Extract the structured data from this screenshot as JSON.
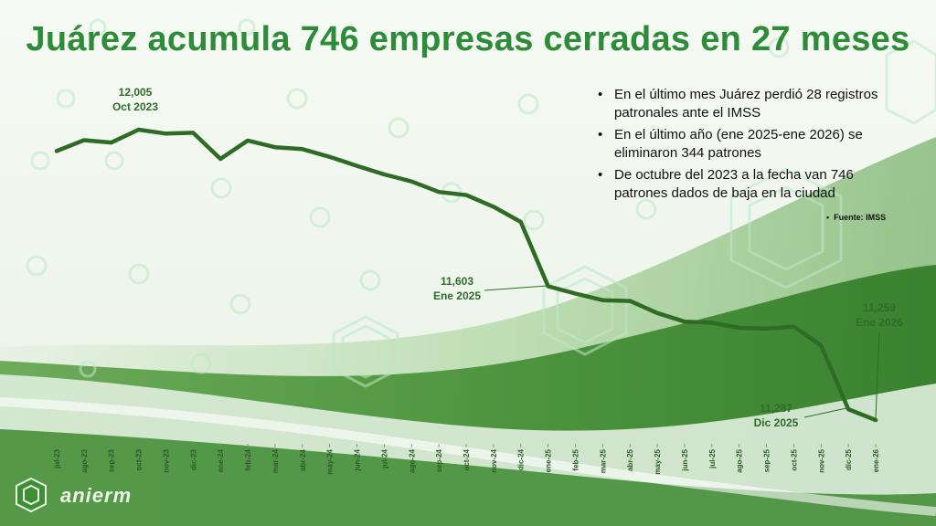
{
  "title": "Juárez acumula 746 empresas cerradas en 27 meses",
  "bullets": [
    "En el último mes Juárez perdió 28 registros patronales ante el IMSS",
    "En el último año (ene 2025-ene 2026) se eliminaron 344 patrones",
    "De octubre del 2023 a la fecha van 746 patrones dados de baja en la ciudad"
  ],
  "source": "Fuente: IMSS",
  "logo_text": "anierm",
  "annotations": [
    {
      "value": "12,005",
      "label": "Oct 2023"
    },
    {
      "value": "11,603",
      "label": "Ene 2025"
    },
    {
      "value": "11,259",
      "label": "Ene 2026"
    },
    {
      "value": "11,287",
      "label": "Dic 2025"
    }
  ],
  "colors": {
    "line": "#2e6b25",
    "title": "#2e8b3a",
    "accent_light": "#a9dcb0"
  },
  "chart_data": {
    "type": "line",
    "title": "Juárez acumula 746 empresas cerradas en 27 meses",
    "xlabel": "",
    "ylabel": "",
    "categories": [
      "jul-23",
      "ago-23",
      "sep-23",
      "oct-23",
      "nov-23",
      "dic-23",
      "ene-24",
      "feb-24",
      "mar-24",
      "abr-24",
      "may-24",
      "jun-24",
      "jul-24",
      "ago-24",
      "sep-24",
      "oct-24",
      "nov-24",
      "dic-24",
      "ene-25",
      "feb-25",
      "mar-25",
      "abr-25",
      "may-25",
      "jun-25",
      "jul-25",
      "ago-25",
      "sep-25",
      "oct-25",
      "nov-25",
      "dic-25",
      "ene-26"
    ],
    "values": [
      11950,
      11978,
      11972,
      12005,
      11995,
      11997,
      11930,
      11977,
      11960,
      11955,
      11935,
      11912,
      11890,
      11872,
      11845,
      11837,
      11807,
      11768,
      11603,
      11584,
      11567,
      11565,
      11534,
      11512,
      11509,
      11496,
      11494,
      11499,
      11451,
      11287,
      11259
    ],
    "ylim": [
      11230,
      12100
    ],
    "grid": false,
    "legend": "none"
  }
}
